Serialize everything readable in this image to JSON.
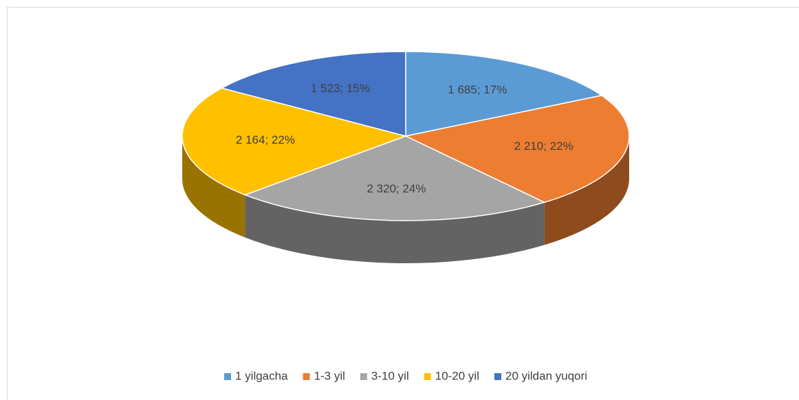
{
  "chart_data": {
    "type": "pie",
    "categories": [
      "1 yilgacha",
      "1-3 yil",
      "3-10 yil",
      "10-20 yil",
      "20 yildan yuqori"
    ],
    "values": [
      1685,
      2210,
      2320,
      2164,
      1523
    ],
    "value_labels": [
      "1 685; 17%",
      "2 210; 22%",
      "2 320; 24%",
      "2 164; 22%",
      "1 523; 15%"
    ],
    "colors": [
      "#5b9bd5",
      "#ed7d31",
      "#a5a5a5",
      "#ffc000",
      "#4472c4"
    ],
    "legend": "bottom"
  }
}
